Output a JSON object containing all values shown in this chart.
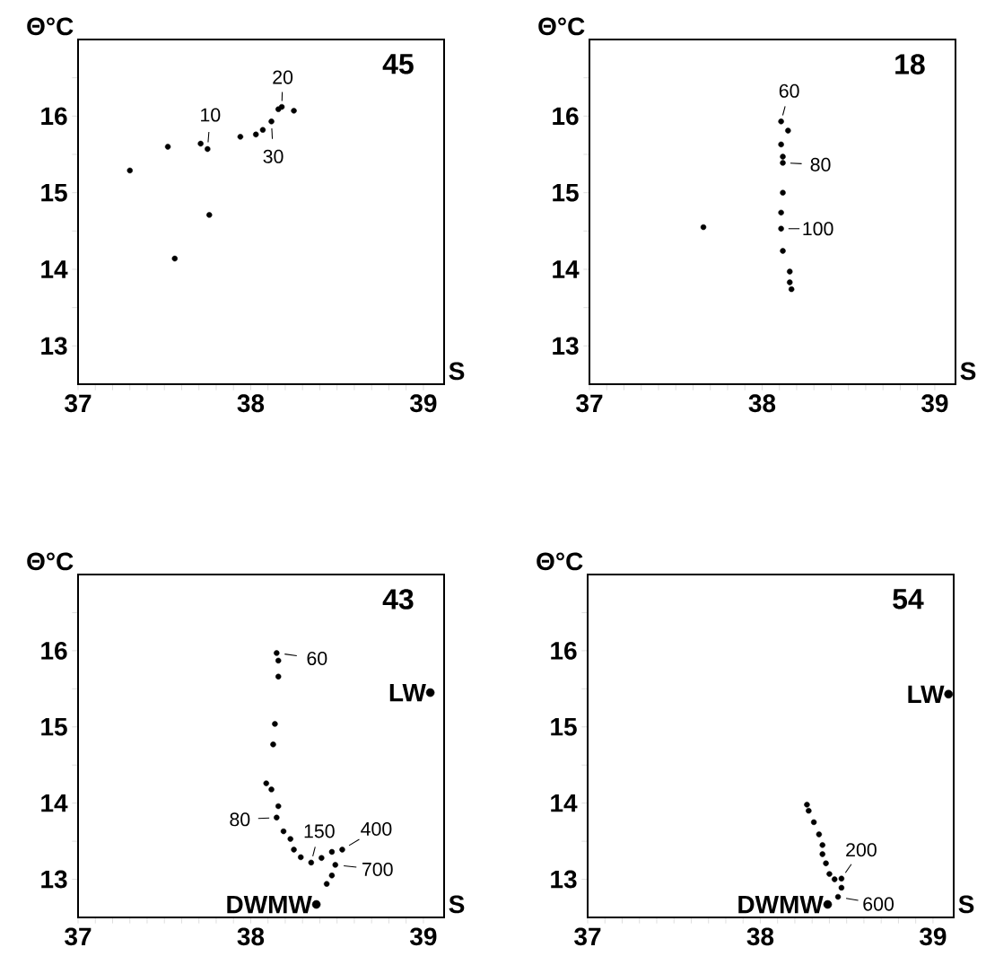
{
  "chart_data": [
    {
      "type": "scatter",
      "xlabel": "S",
      "ylabel": "Θ°C",
      "xlim": [
        37,
        39.12
      ],
      "ylim": [
        12.5,
        17
      ],
      "xticks": [
        37,
        {
          "value": 37.1,
          "label": null
        },
        {
          "value": 37.2,
          "label": null
        },
        {
          "value": 37.3,
          "label": null
        },
        {
          "value": 37.4,
          "label": null
        },
        {
          "value": 37.5,
          "label": null
        },
        {
          "value": 37.6,
          "label": null
        },
        {
          "value": 37.7,
          "label": null
        },
        {
          "value": 37.8,
          "label": null
        },
        {
          "value": 37.9,
          "label": null
        },
        38,
        {
          "value": 38.1,
          "label": null
        },
        {
          "value": 38.2,
          "label": null
        },
        {
          "value": 38.3,
          "label": null
        },
        {
          "value": 38.4,
          "label": null
        },
        {
          "value": 38.5,
          "label": null
        },
        {
          "value": 38.6,
          "label": null
        },
        {
          "value": 38.7,
          "label": null
        },
        {
          "value": 38.8,
          "label": null
        },
        {
          "value": 38.9,
          "label": null
        },
        39
      ],
      "yticks": [
        13,
        {
          "value": 13.5,
          "label": null
        },
        14,
        {
          "value": 14.5,
          "label": null
        },
        15,
        {
          "value": 15.5,
          "label": null
        },
        16,
        {
          "value": 16.5,
          "label": null
        }
      ],
      "marker": "circle",
      "series": [
        {
          "color": "#000000",
          "x": [
            37.3,
            37.52,
            37.71,
            37.75,
            37.94,
            38.03,
            38.07,
            38.12,
            38.16,
            38.18,
            38.25,
            37.76,
            37.56
          ],
          "values": [
            15.29,
            15.6,
            15.64,
            15.57,
            15.73,
            15.76,
            15.82,
            15.93,
            16.09,
            16.12,
            16.07,
            14.71,
            14.14
          ]
        }
      ],
      "annotations": [
        "45",
        {
          "text": "10",
          "x": 37.75,
          "y": 15.57
        },
        {
          "text": "20",
          "x": 38.18,
          "y": 16.12
        },
        {
          "text": "30",
          "x": 38.12,
          "y": 15.93
        }
      ]
    },
    {
      "type": "scatter",
      "xlabel": "S",
      "ylabel": "Θ°C",
      "xlim": [
        37,
        39.12
      ],
      "ylim": [
        12.5,
        17
      ],
      "xticks": [
        37,
        {
          "value": 37.1,
          "label": null
        },
        {
          "value": 37.2,
          "label": null
        },
        {
          "value": 37.3,
          "label": null
        },
        {
          "value": 37.4,
          "label": null
        },
        {
          "value": 37.5,
          "label": null
        },
        {
          "value": 37.6,
          "label": null
        },
        {
          "value": 37.7,
          "label": null
        },
        {
          "value": 37.8,
          "label": null
        },
        {
          "value": 37.9,
          "label": null
        },
        38,
        {
          "value": 38.1,
          "label": null
        },
        {
          "value": 38.2,
          "label": null
        },
        {
          "value": 38.3,
          "label": null
        },
        {
          "value": 38.4,
          "label": null
        },
        {
          "value": 38.5,
          "label": null
        },
        {
          "value": 38.6,
          "label": null
        },
        {
          "value": 38.7,
          "label": null
        },
        {
          "value": 38.8,
          "label": null
        },
        {
          "value": 38.9,
          "label": null
        },
        39
      ],
      "yticks": [
        13,
        {
          "value": 13.5,
          "label": null
        },
        14,
        {
          "value": 14.5,
          "label": null
        },
        15,
        {
          "value": 15.5,
          "label": null
        },
        16,
        {
          "value": 16.5,
          "label": null
        }
      ],
      "marker": "circle",
      "series": [
        {
          "color": "#000000",
          "x": [
            38.11,
            38.15,
            38.11,
            38.12,
            38.12,
            38.12,
            38.11,
            38.11,
            38.12,
            38.16,
            38.16,
            38.17,
            37.66
          ],
          "values": [
            15.93,
            15.81,
            15.63,
            15.47,
            15.39,
            15.0,
            14.74,
            14.53,
            14.24,
            13.97,
            13.83,
            13.74,
            14.55
          ]
        }
      ],
      "annotations": [
        "18",
        {
          "text": "60",
          "x": 38.11,
          "y": 15.93
        },
        {
          "text": "80",
          "x": 38.12,
          "y": 15.39
        },
        {
          "text": "100",
          "x": 38.11,
          "y": 14.53
        }
      ]
    },
    {
      "type": "scatter",
      "xlabel": "S",
      "ylabel": "Θ°C",
      "xlim": [
        37,
        39.12
      ],
      "ylim": [
        12.5,
        17
      ],
      "xticks": [
        37,
        {
          "value": 37.1,
          "label": null
        },
        {
          "value": 37.2,
          "label": null
        },
        {
          "value": 37.3,
          "label": null
        },
        {
          "value": 37.4,
          "label": null
        },
        {
          "value": 37.5,
          "label": null
        },
        {
          "value": 37.6,
          "label": null
        },
        {
          "value": 37.7,
          "label": null
        },
        {
          "value": 37.8,
          "label": null
        },
        {
          "value": 37.9,
          "label": null
        },
        38,
        {
          "value": 38.1,
          "label": null
        },
        {
          "value": 38.2,
          "label": null
        },
        {
          "value": 38.3,
          "label": null
        },
        {
          "value": 38.4,
          "label": null
        },
        {
          "value": 38.5,
          "label": null
        },
        {
          "value": 38.6,
          "label": null
        },
        {
          "value": 38.7,
          "label": null
        },
        {
          "value": 38.8,
          "label": null
        },
        {
          "value": 38.9,
          "label": null
        },
        39
      ],
      "yticks": [
        13,
        {
          "value": 13.5,
          "label": null
        },
        14,
        {
          "value": 14.5,
          "label": null
        },
        15,
        {
          "value": 15.5,
          "label": null
        },
        16,
        {
          "value": 16.5,
          "label": null
        }
      ],
      "marker": "circle",
      "series": [
        {
          "color": "#000000",
          "x": [
            38.15,
            38.16,
            38.16,
            38.14,
            38.13,
            38.09,
            38.12,
            38.16,
            38.15,
            38.19,
            38.23,
            38.25,
            38.29,
            38.35,
            38.41,
            38.47,
            38.53,
            38.49,
            38.47,
            38.44
          ],
          "values": [
            15.97,
            15.87,
            15.66,
            15.04,
            14.77,
            14.26,
            14.18,
            13.96,
            13.81,
            13.63,
            13.53,
            13.39,
            13.29,
            13.22,
            13.28,
            13.36,
            13.39,
            13.19,
            13.05,
            12.94
          ]
        },
        {
          "name": "LW",
          "color": "#000000",
          "x": [
            39.04
          ],
          "values": [
            15.45
          ]
        },
        {
          "name": "DWMW",
          "color": "#000000",
          "x": [
            38.38
          ],
          "values": [
            12.67
          ]
        }
      ],
      "annotations": [
        "43",
        {
          "text": "60",
          "x": 38.15,
          "y": 15.97
        },
        {
          "text": "80",
          "x": 38.15,
          "y": 13.81
        },
        {
          "text": "150",
          "x": 38.35,
          "y": 13.22
        },
        {
          "text": "400",
          "x": 38.53,
          "y": 13.39
        },
        {
          "text": "700",
          "x": 38.49,
          "y": 13.19
        }
      ]
    },
    {
      "type": "scatter",
      "xlabel": "S",
      "ylabel": "Θ°C",
      "xlim": [
        37,
        39.12
      ],
      "ylim": [
        12.5,
        17
      ],
      "xticks": [
        37,
        {
          "value": 37.1,
          "label": null
        },
        {
          "value": 37.2,
          "label": null
        },
        {
          "value": 37.3,
          "label": null
        },
        {
          "value": 37.4,
          "label": null
        },
        {
          "value": 37.5,
          "label": null
        },
        {
          "value": 37.6,
          "label": null
        },
        {
          "value": 37.7,
          "label": null
        },
        {
          "value": 37.8,
          "label": null
        },
        {
          "value": 37.9,
          "label": null
        },
        38,
        {
          "value": 38.1,
          "label": null
        },
        {
          "value": 38.2,
          "label": null
        },
        {
          "value": 38.3,
          "label": null
        },
        {
          "value": 38.4,
          "label": null
        },
        {
          "value": 38.5,
          "label": null
        },
        {
          "value": 38.6,
          "label": null
        },
        {
          "value": 38.7,
          "label": null
        },
        {
          "value": 38.8,
          "label": null
        },
        {
          "value": 38.9,
          "label": null
        },
        39
      ],
      "yticks": [
        13,
        {
          "value": 13.5,
          "label": null
        },
        14,
        {
          "value": 14.5,
          "label": null
        },
        15,
        {
          "value": 15.5,
          "label": null
        },
        16,
        {
          "value": 16.5,
          "label": null
        }
      ],
      "marker": "circle",
      "series": [
        {
          "color": "#000000",
          "x": [
            38.27,
            38.28,
            38.31,
            38.34,
            38.36,
            38.36,
            38.38,
            38.4,
            38.43,
            38.47,
            38.47,
            38.45
          ],
          "values": [
            13.98,
            13.9,
            13.75,
            13.59,
            13.45,
            13.33,
            13.21,
            13.07,
            13.0,
            13.01,
            12.89,
            12.77
          ]
        },
        {
          "name": "LW",
          "color": "#000000",
          "x": [
            39.09
          ],
          "values": [
            15.43
          ]
        },
        {
          "name": "DWMW",
          "color": "#000000",
          "x": [
            38.39
          ],
          "values": [
            12.67
          ]
        }
      ],
      "annotations": [
        "54",
        {
          "text": "200",
          "x": 38.47,
          "y": 13.01
        },
        {
          "text": "600",
          "x": 38.45,
          "y": 12.77
        }
      ]
    }
  ]
}
